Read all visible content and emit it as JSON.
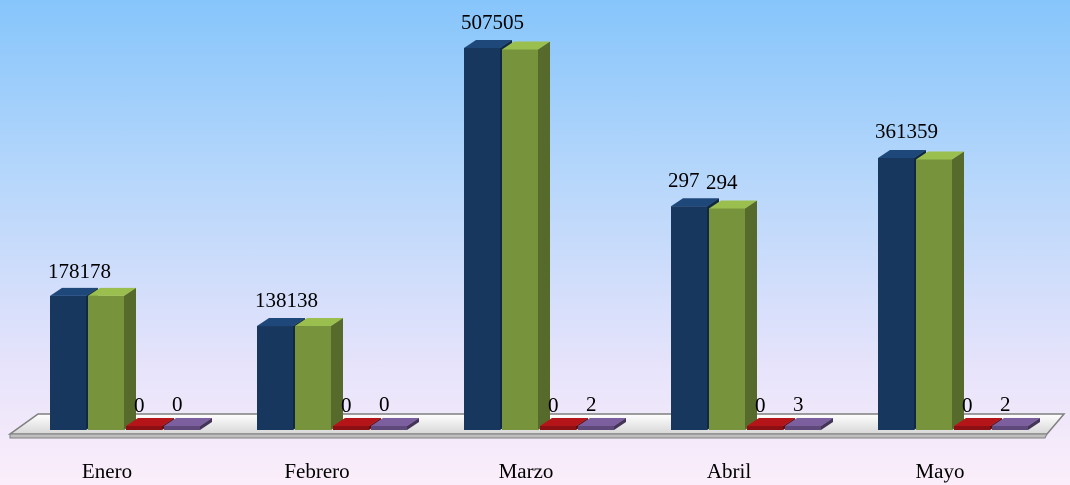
{
  "chart_data": {
    "type": "bar",
    "style": "3d-clustered-column",
    "categories": [
      "Enero",
      "Febrero",
      "Marzo",
      "Abril",
      "Mayo"
    ],
    "series": [
      {
        "values": [
          178,
          138,
          507,
          297,
          361
        ],
        "color": "#17375e"
      },
      {
        "values": [
          178,
          138,
          505,
          294,
          359
        ],
        "color": "#77933c"
      },
      {
        "values": [
          0,
          0,
          0,
          0,
          0
        ],
        "color": "#8b0f13"
      },
      {
        "values": [
          0,
          0,
          2,
          3,
          2
        ],
        "color": "#5f497a"
      }
    ],
    "data_labels": [
      {
        "text": "178178",
        "category": 0
      },
      {
        "text": "138138",
        "category": 1
      },
      {
        "text": "507505",
        "category": 2
      },
      {
        "text": "297",
        "category": 3
      },
      {
        "text": "294",
        "category": 3
      },
      {
        "text": "361359",
        "category": 4
      }
    ],
    "small_labels": [
      [
        "0",
        "0"
      ],
      [
        "0",
        "0"
      ],
      [
        "0",
        "2"
      ],
      [
        "0",
        "3"
      ],
      [
        "0",
        "2"
      ]
    ],
    "ylim": [
      0,
      600
    ],
    "grid": false,
    "legend": "none",
    "title": "",
    "xlabel": "",
    "ylabel": ""
  }
}
